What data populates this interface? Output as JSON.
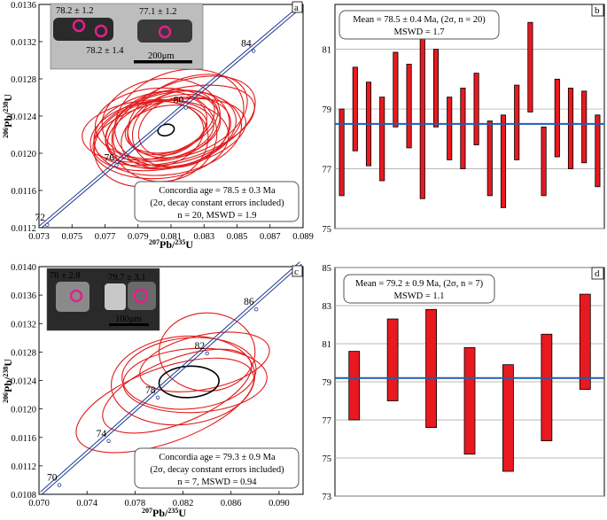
{
  "chart_data": [
    {
      "panel": "a",
      "type": "scatter",
      "subtype": "concordia",
      "xlabel_sup": "207",
      "xlabel_main": "Pb/",
      "xlabel_sup2": "235",
      "xlabel_end": "U",
      "ylabel_sup": "206",
      "ylabel_main": "Pb/",
      "ylabel_sup2": "238",
      "ylabel_end": "U",
      "xlim": [
        0.073,
        0.089
      ],
      "ylim": [
        0.0112,
        0.0136
      ],
      "xticks": [
        "0.073",
        "0.075",
        "0.077",
        "0.079",
        "0.081",
        "0.083",
        "0.085",
        "0.087",
        "0.089"
      ],
      "xtick_values": [
        0.073,
        0.075,
        0.077,
        0.079,
        0.081,
        0.083,
        0.085,
        0.087,
        0.089
      ],
      "yticks": [
        "0.0112",
        "0.0116",
        "0.0120",
        "0.0124",
        "0.0128",
        "0.0132",
        "0.0136"
      ],
      "ytick_values": [
        0.0112,
        0.0116,
        0.012,
        0.0124,
        0.0128,
        0.0132,
        0.0136
      ],
      "concordia_ages": [
        {
          "label": "72",
          "x": 0.0735,
          "y": 0.01123
        },
        {
          "label": "76",
          "x": 0.0777,
          "y": 0.01187
        },
        {
          "label": "80",
          "x": 0.0819,
          "y": 0.01249
        },
        {
          "label": "84",
          "x": 0.086,
          "y": 0.0131
        }
      ],
      "concordia_line": {
        "x": [
          0.0731,
          0.0886
        ],
        "y": [
          0.01121,
          0.01354
        ]
      },
      "ellipses": [
        {
          "cx": 0.081,
          "cy": 0.01225,
          "rx": 0.004,
          "ry": 0.0004,
          "angle": -12
        },
        {
          "cx": 0.0808,
          "cy": 0.01222,
          "rx": 0.0045,
          "ry": 0.00045,
          "angle": -8
        },
        {
          "cx": 0.0805,
          "cy": 0.01228,
          "rx": 0.0035,
          "ry": 0.0003,
          "angle": -20
        },
        {
          "cx": 0.0812,
          "cy": 0.0123,
          "rx": 0.005,
          "ry": 0.00038,
          "angle": -15
        },
        {
          "cx": 0.08,
          "cy": 0.0122,
          "rx": 0.003,
          "ry": 0.00035,
          "angle": -10
        },
        {
          "cx": 0.0815,
          "cy": 0.01238,
          "rx": 0.004,
          "ry": 0.0005,
          "angle": -18
        },
        {
          "cx": 0.0803,
          "cy": 0.01215,
          "rx": 0.0042,
          "ry": 0.00042,
          "angle": -5
        },
        {
          "cx": 0.082,
          "cy": 0.0124,
          "rx": 0.0038,
          "ry": 0.0004,
          "angle": -22
        },
        {
          "cx": 0.0798,
          "cy": 0.0121,
          "rx": 0.0035,
          "ry": 0.00045,
          "angle": -14
        },
        {
          "cx": 0.081,
          "cy": 0.01233,
          "rx": 0.0028,
          "ry": 0.0003,
          "angle": -25
        },
        {
          "cx": 0.0807,
          "cy": 0.01226,
          "rx": 0.0025,
          "ry": 0.00025,
          "angle": -10
        },
        {
          "cx": 0.0813,
          "cy": 0.01222,
          "rx": 0.0034,
          "ry": 0.00036,
          "angle": -16
        },
        {
          "cx": 0.0796,
          "cy": 0.01224,
          "rx": 0.004,
          "ry": 0.00033,
          "angle": -6
        },
        {
          "cx": 0.0818,
          "cy": 0.01235,
          "rx": 0.0045,
          "ry": 0.00042,
          "angle": -20
        },
        {
          "cx": 0.0806,
          "cy": 0.01218,
          "rx": 0.0032,
          "ry": 0.00048,
          "angle": -12
        },
        {
          "cx": 0.0811,
          "cy": 0.01229,
          "rx": 0.0022,
          "ry": 0.00028,
          "angle": -30
        },
        {
          "cx": 0.0802,
          "cy": 0.01232,
          "rx": 0.0038,
          "ry": 0.00038,
          "angle": -4
        },
        {
          "cx": 0.0816,
          "cy": 0.01226,
          "rx": 0.003,
          "ry": 0.0004,
          "angle": -18
        },
        {
          "cx": 0.0809,
          "cy": 0.0122,
          "rx": 0.0047,
          "ry": 0.00036,
          "angle": -11
        },
        {
          "cx": 0.0804,
          "cy": 0.01236,
          "rx": 0.0036,
          "ry": 0.00044,
          "angle": -9
        }
      ],
      "mean_ellipse": {
        "cx": 0.0807,
        "cy": 0.01225,
        "rx": 0.0005,
        "ry": 6e-05,
        "angle": -15
      },
      "annotation_lines": [
        "Concordia age = 78.5 ± 0.3 Ma",
        "(2σ, decay constant errors included)",
        "n = 20, MSWD = 1.9"
      ],
      "inset": {
        "labels": [
          "78.2 ± 1.2",
          "77.1 ± 1.2",
          "78.2 ± 1.4"
        ],
        "scale": "200μm"
      },
      "colors": {
        "ellipse": "#e21b1b",
        "concordia": "#1f3a8f",
        "mean": "#000000"
      }
    },
    {
      "panel": "b",
      "type": "bar",
      "subtype": "weighted-mean",
      "ylim": [
        75,
        82.5
      ],
      "yticks": [
        "75",
        "77",
        "79",
        "81"
      ],
      "ytick_values": [
        75,
        77,
        79,
        81
      ],
      "mean": 78.5,
      "bars": [
        {
          "low": 76.1,
          "high": 79.0
        },
        {
          "low": 77.6,
          "high": 80.4
        },
        {
          "low": 77.1,
          "high": 79.9
        },
        {
          "low": 76.6,
          "high": 79.4
        },
        {
          "low": 78.4,
          "high": 80.9
        },
        {
          "low": 77.7,
          "high": 80.5
        },
        {
          "low": 76.0,
          "high": 81.7
        },
        {
          "low": 78.4,
          "high": 81.0
        },
        {
          "low": 77.3,
          "high": 79.4
        },
        {
          "low": 77.0,
          "high": 79.7
        },
        {
          "low": 77.8,
          "high": 80.2
        },
        {
          "low": 76.1,
          "high": 78.6
        },
        {
          "low": 75.7,
          "high": 78.8
        },
        {
          "low": 77.3,
          "high": 79.8
        },
        {
          "low": 78.9,
          "high": 81.9
        },
        {
          "low": 76.1,
          "high": 78.4
        },
        {
          "low": 77.4,
          "high": 80.0
        },
        {
          "low": 77.0,
          "high": 79.7
        },
        {
          "low": 77.2,
          "high": 79.6
        },
        {
          "low": 76.4,
          "high": 78.8
        }
      ],
      "annotation_lines": [
        "Mean = 78.5 ± 0.4 Ma, (2σ, n = 20)",
        "MSWD = 1.7"
      ],
      "colors": {
        "bar": "#e8191f",
        "mean_line": "#1f5fb0"
      }
    },
    {
      "panel": "c",
      "type": "scatter",
      "subtype": "concordia",
      "xlabel_sup": "207",
      "xlabel_main": "Pb/",
      "xlabel_sup2": "235",
      "xlabel_end": "U",
      "ylabel_sup": "206",
      "ylabel_main": "Pb/",
      "ylabel_sup2": "238",
      "ylabel_end": "U",
      "xlim": [
        0.07,
        0.092
      ],
      "ylim": [
        0.0108,
        0.014
      ],
      "xticks": [
        "0.070",
        "0.074",
        "0.078",
        "0.082",
        "0.086",
        "0.090"
      ],
      "xtick_values": [
        0.07,
        0.074,
        0.078,
        0.082,
        0.086,
        0.09
      ],
      "yticks": [
        "0.0108",
        "0.0112",
        "0.0116",
        "0.0120",
        "0.0124",
        "0.0128",
        "0.0132",
        "0.0136",
        "0.0140"
      ],
      "ytick_values": [
        0.0108,
        0.0112,
        0.0116,
        0.012,
        0.0124,
        0.0128,
        0.0132,
        0.0136,
        0.014
      ],
      "concordia_ages": [
        {
          "label": "70",
          "x": 0.0717,
          "y": 0.01093
        },
        {
          "label": "74",
          "x": 0.0758,
          "y": 0.01155
        },
        {
          "label": "78",
          "x": 0.0799,
          "y": 0.01216
        },
        {
          "label": "82",
          "x": 0.084,
          "y": 0.01278
        },
        {
          "label": "86",
          "x": 0.0881,
          "y": 0.0134
        }
      ],
      "concordia_line": {
        "x": [
          0.0702,
          0.0918
        ],
        "y": [
          0.01082,
          0.01405
        ]
      },
      "ellipses": [
        {
          "cx": 0.0815,
          "cy": 0.01225,
          "rx": 0.0066,
          "ry": 0.00045,
          "angle": -22
        },
        {
          "cx": 0.082,
          "cy": 0.0124,
          "rx": 0.006,
          "ry": 0.00062,
          "angle": -6
        },
        {
          "cx": 0.084,
          "cy": 0.0128,
          "rx": 0.004,
          "ry": 0.00055,
          "angle": 0
        },
        {
          "cx": 0.0825,
          "cy": 0.0125,
          "rx": 0.0056,
          "ry": 0.0005,
          "angle": -5
        },
        {
          "cx": 0.0838,
          "cy": 0.01266,
          "rx": 0.0055,
          "ry": 0.00038,
          "angle": -12
        },
        {
          "cx": 0.083,
          "cy": 0.0124,
          "rx": 0.006,
          "ry": 0.00045,
          "angle": -3
        },
        {
          "cx": 0.0805,
          "cy": 0.01205,
          "rx": 0.0078,
          "ry": 0.00052,
          "angle": -20
        }
      ],
      "mean_ellipse": {
        "cx": 0.0825,
        "cy": 0.01238,
        "rx": 0.0025,
        "ry": 0.00022,
        "angle": -3
      },
      "annotation_lines": [
        "Concordia age = 79.3 ± 0.9 Ma",
        "(2σ, decay constant errors included)",
        "n = 7, MSWD = 0.94"
      ],
      "inset": {
        "labels": [
          "78 ± 2.8",
          "79.7 ± 3.1"
        ],
        "scale": "100μm"
      },
      "colors": {
        "ellipse": "#e21b1b",
        "concordia": "#1f3a8f",
        "mean": "#000000"
      }
    },
    {
      "panel": "d",
      "type": "bar",
      "subtype": "weighted-mean",
      "ylim": [
        73,
        85
      ],
      "yticks": [
        "73",
        "75",
        "77",
        "79",
        "81",
        "83",
        "85"
      ],
      "ytick_values": [
        73,
        75,
        77,
        79,
        81,
        83,
        85
      ],
      "mean": 79.2,
      "bars": [
        {
          "low": 77.0,
          "high": 80.6
        },
        {
          "low": 78.0,
          "high": 82.3
        },
        {
          "low": 76.6,
          "high": 82.8
        },
        {
          "low": 75.2,
          "high": 80.8
        },
        {
          "low": 74.3,
          "high": 79.9
        },
        {
          "low": 75.9,
          "high": 81.5
        },
        {
          "low": 78.6,
          "high": 83.6
        }
      ],
      "annotation_lines": [
        "Mean = 79.2 ± 0.9 Ma, (2σ, n = 7)",
        "MSWD = 1.1"
      ],
      "colors": {
        "bar": "#e8191f",
        "mean_line": "#1f5fb0"
      }
    }
  ]
}
